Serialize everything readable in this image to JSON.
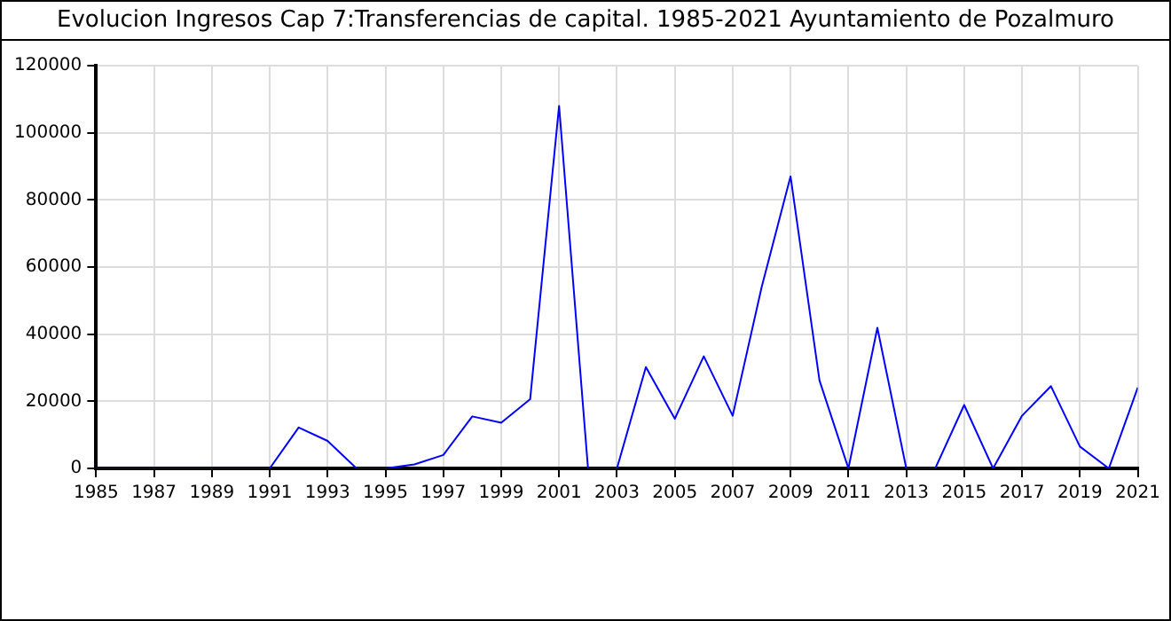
{
  "chart_data": {
    "type": "line",
    "title": "Evolucion Ingresos Cap 7:Transferencias de capital. 1985-2021 Ayuntamiento de Pozalmuro",
    "x": [
      1985,
      1986,
      1987,
      1988,
      1989,
      1990,
      1991,
      1992,
      1993,
      1994,
      1995,
      1996,
      1997,
      1998,
      1999,
      2000,
      2001,
      2002,
      2003,
      2004,
      2005,
      2006,
      2007,
      2008,
      2009,
      2010,
      2011,
      2012,
      2013,
      2014,
      2015,
      2016,
      2017,
      2018,
      2019,
      2020,
      2021
    ],
    "series": [
      {
        "color": "#0000ff",
        "values": [
          0,
          0,
          0,
          0,
          0,
          0,
          0,
          12200,
          8200,
          0,
          0,
          1200,
          4000,
          15500,
          13600,
          20600,
          108000,
          0,
          0,
          30200,
          14800,
          33400,
          15700,
          54000,
          87000,
          26200,
          0,
          41900,
          0,
          0,
          18900,
          0,
          15700,
          24500,
          6500,
          0,
          24100
        ]
      }
    ],
    "xlim": [
      1985,
      2021
    ],
    "xticks": [
      1985,
      1987,
      1989,
      1991,
      1993,
      1995,
      1997,
      1999,
      2001,
      2003,
      2005,
      2007,
      2009,
      2011,
      2013,
      2015,
      2017,
      2019,
      2021
    ],
    "ylim": [
      0,
      120000
    ],
    "yticks": [
      0,
      20000,
      40000,
      60000,
      80000,
      100000,
      120000
    ],
    "grid": true,
    "legend": false,
    "marker": "none",
    "line_style": "solid"
  }
}
